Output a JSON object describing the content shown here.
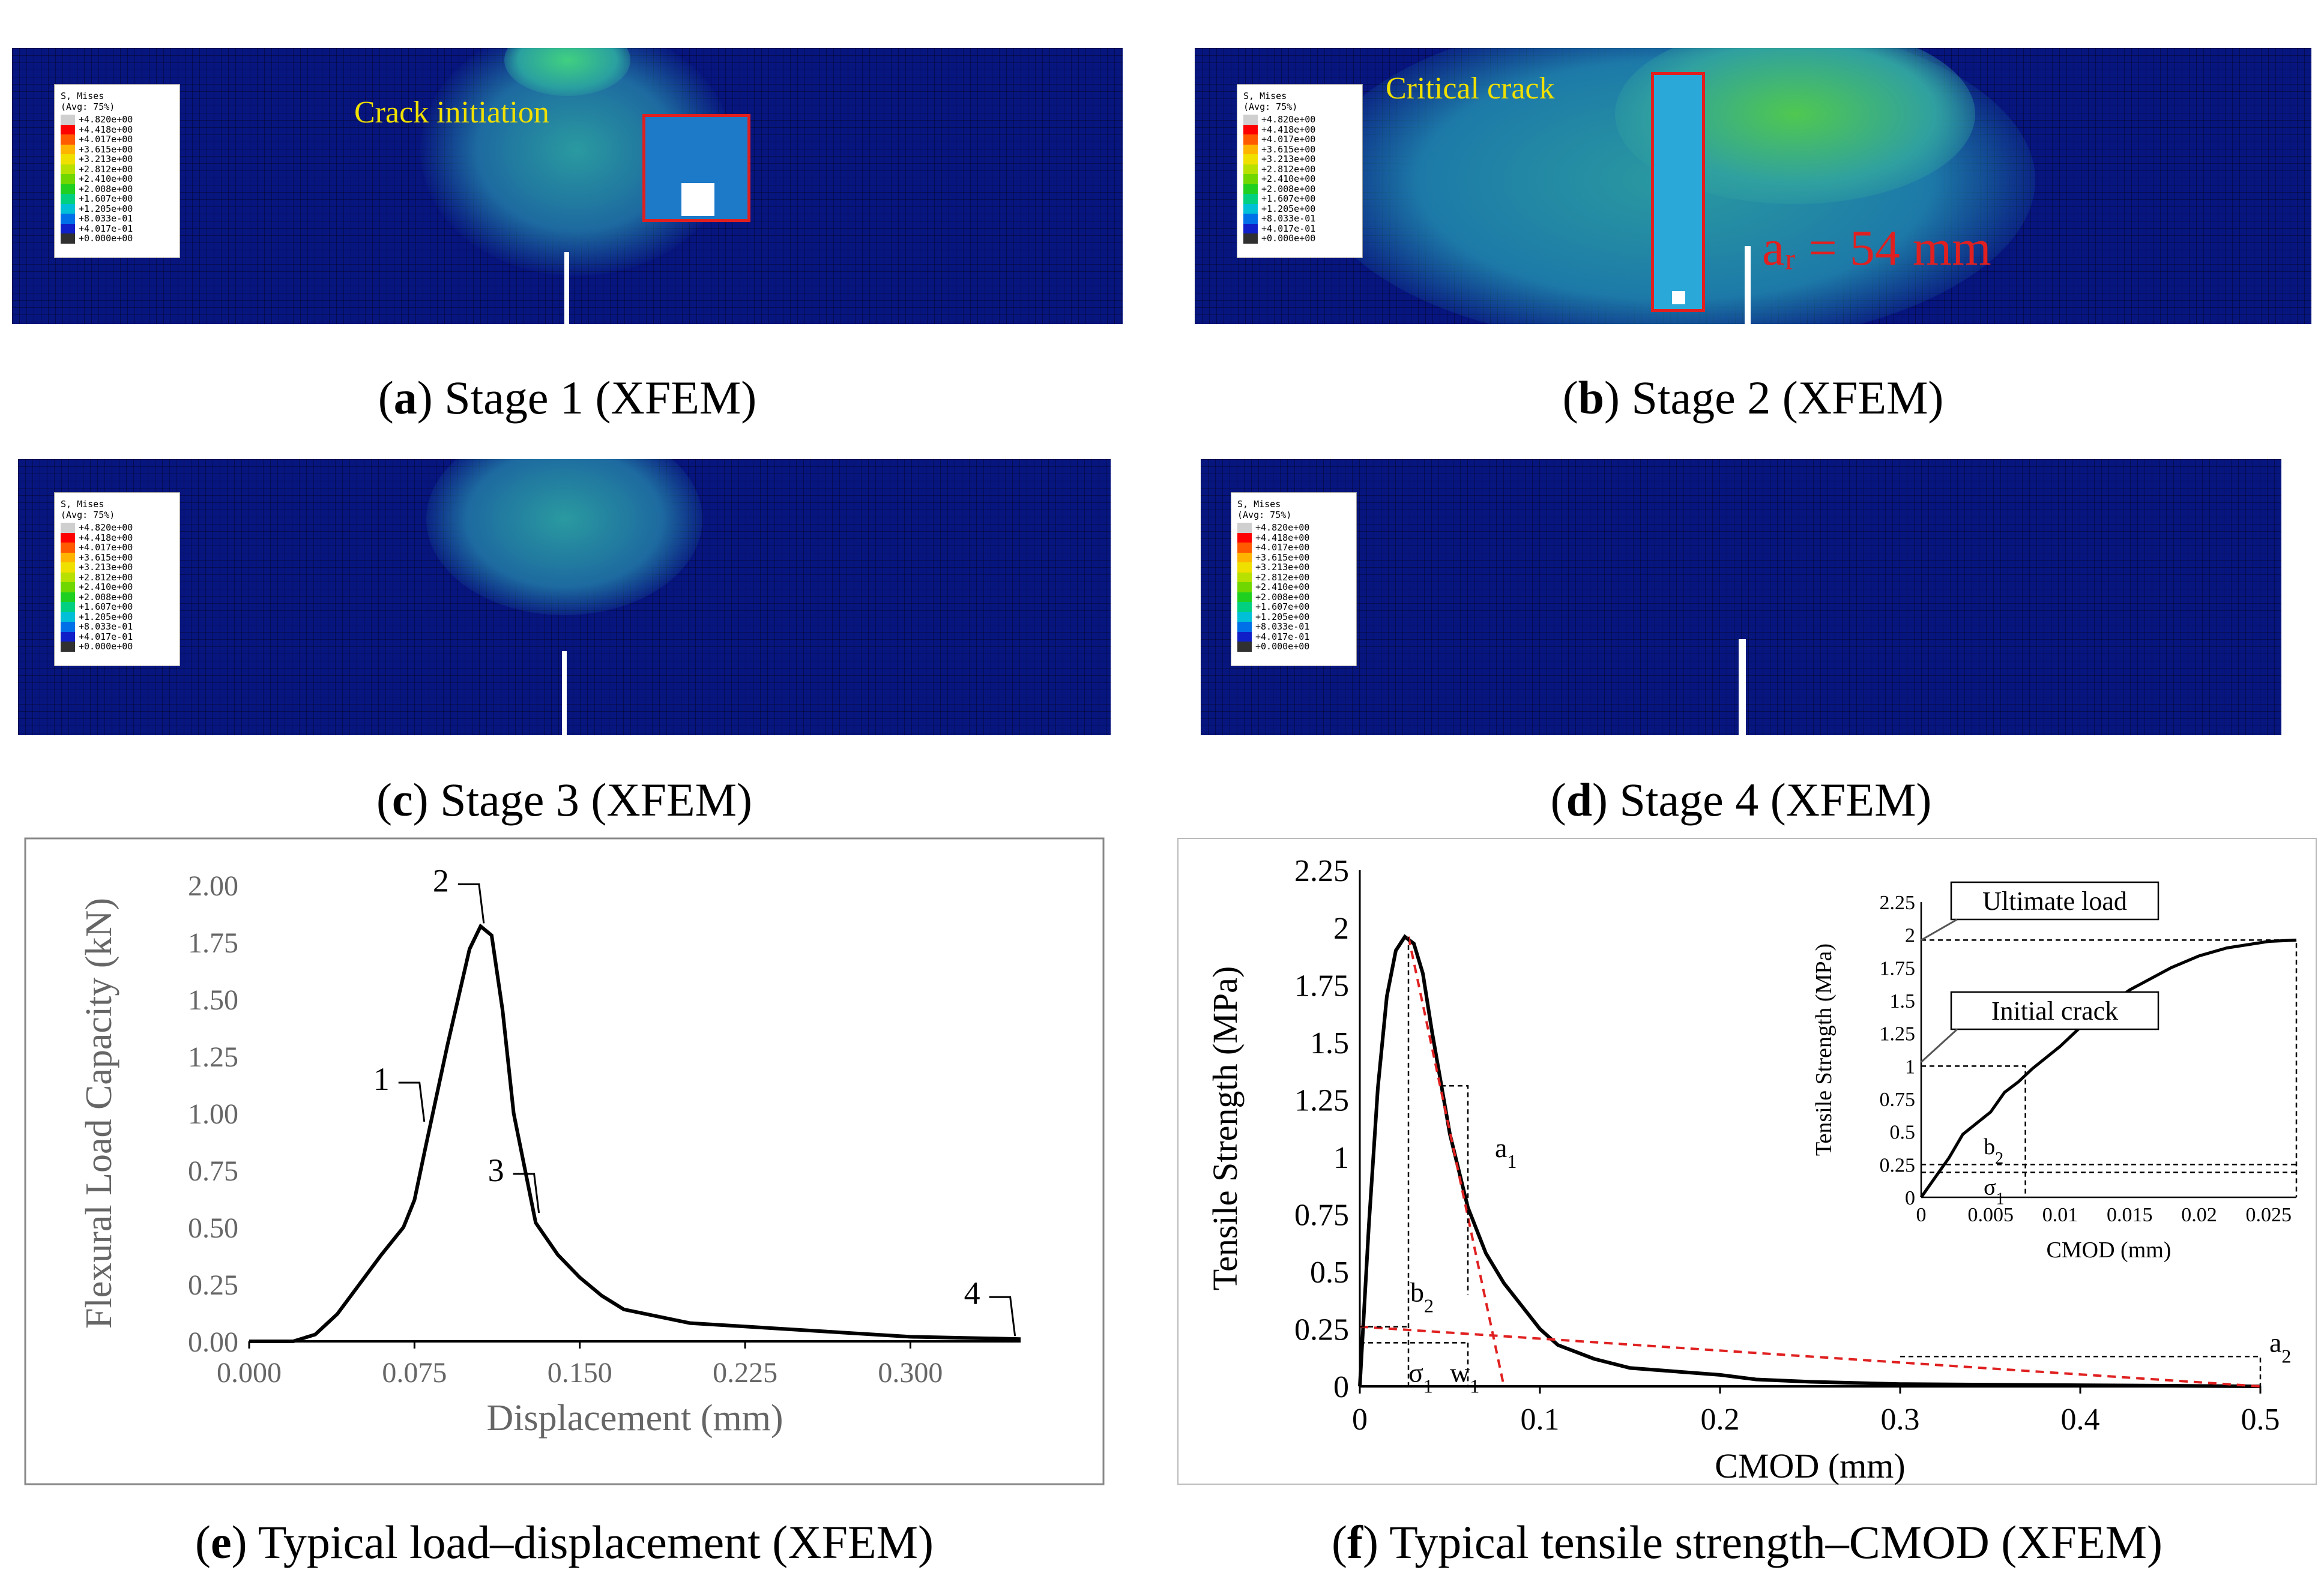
{
  "legend": {
    "title_line1": "S, Mises",
    "title_line2": "(Avg: 75%)",
    "values": [
      "+4.820e+00",
      "+4.418e+00",
      "+4.017e+00",
      "+3.615e+00",
      "+3.213e+00",
      "+2.812e+00",
      "+2.410e+00",
      "+2.008e+00",
      "+1.607e+00",
      "+1.205e+00",
      "+8.033e-01",
      "+4.017e-01",
      "+0.000e+00"
    ],
    "colors": [
      "#cfcfcf",
      "#ff0000",
      "#ff5a00",
      "#ffb400",
      "#f0e000",
      "#b8e000",
      "#70d800",
      "#20d020",
      "#00d080",
      "#00c0d8",
      "#0070e8",
      "#1020c8",
      "#303030"
    ]
  },
  "panels": {
    "a": {
      "letter": "a",
      "caption": " Stage 1 (XFEM)",
      "annotation": "Crack initiation"
    },
    "b": {
      "letter": "b",
      "caption": " Stage 2 (XFEM)",
      "annotation": "Critical crack",
      "length_label": "aᵣ = 54 mm"
    },
    "c": {
      "letter": "c",
      "caption": " Stage 3 (XFEM)"
    },
    "d": {
      "letter": "d",
      "caption": " Stage 4 (XFEM)"
    },
    "e": {
      "letter": "e",
      "caption": " Typical load–displacement (XFEM)"
    },
    "f": {
      "letter": "f",
      "caption": " Typical tensile strength–CMOD (XFEM)"
    }
  },
  "chart_data": [
    {
      "type": "line",
      "id": "e",
      "xlabel": "Displacement (mm)",
      "ylabel": "Flexural Load Capacity (kN)",
      "xlim": [
        0,
        0.35
      ],
      "ylim": [
        0,
        2.0
      ],
      "x_ticks": [
        "0.000",
        "0.075",
        "0.150",
        "0.225",
        "0.300"
      ],
      "x_tick_values": [
        0,
        0.075,
        0.15,
        0.225,
        0.3
      ],
      "y_ticks": [
        "0.00",
        "0.25",
        "0.50",
        "0.75",
        "1.00",
        "1.25",
        "1.50",
        "1.75",
        "2.00"
      ],
      "y_tick_values": [
        0,
        0.25,
        0.5,
        0.75,
        1.0,
        1.25,
        1.5,
        1.75,
        2.0
      ],
      "series": [
        {
          "x": [
            0.0,
            0.02,
            0.03,
            0.04,
            0.05,
            0.06,
            0.07,
            0.075,
            0.08,
            0.09,
            0.1,
            0.105,
            0.11,
            0.115,
            0.12,
            0.13,
            0.14,
            0.15,
            0.16,
            0.17,
            0.2,
            0.25,
            0.3,
            0.35
          ],
          "y": [
            0.0,
            0.0,
            0.03,
            0.12,
            0.25,
            0.38,
            0.5,
            0.62,
            0.85,
            1.3,
            1.72,
            1.82,
            1.78,
            1.45,
            1.0,
            0.52,
            0.38,
            0.28,
            0.2,
            0.14,
            0.08,
            0.05,
            0.02,
            0.01
          ]
        }
      ],
      "annotations": [
        {
          "label": "1",
          "x": 0.08,
          "y": 0.95
        },
        {
          "label": "2",
          "x": 0.107,
          "y": 1.82
        },
        {
          "label": "3",
          "x": 0.132,
          "y": 0.55
        },
        {
          "label": "4",
          "x": 0.348,
          "y": 0.01
        }
      ]
    },
    {
      "type": "line",
      "id": "f",
      "xlabel": "CMOD (mm)",
      "ylabel": "Tensile Strength (MPa)",
      "xlim": [
        0,
        0.5
      ],
      "ylim": [
        0,
        2.25
      ],
      "x_ticks": [
        "0",
        "0.1",
        "0.2",
        "0.3",
        "0.4",
        "0.5"
      ],
      "x_tick_values": [
        0,
        0.1,
        0.2,
        0.3,
        0.4,
        0.5
      ],
      "y_ticks": [
        "0",
        "0.25",
        "0.5",
        "0.75",
        "1",
        "1.25",
        "1.5",
        "1.75",
        "2",
        "2.25"
      ],
      "y_tick_values": [
        0,
        0.25,
        0.5,
        0.75,
        1,
        1.25,
        1.5,
        1.75,
        2,
        2.25
      ],
      "series": [
        {
          "x": [
            0.0,
            0.005,
            0.01,
            0.015,
            0.02,
            0.025,
            0.03,
            0.035,
            0.04,
            0.05,
            0.06,
            0.07,
            0.08,
            0.09,
            0.1,
            0.11,
            0.13,
            0.15,
            0.2,
            0.22,
            0.25,
            0.3,
            0.4,
            0.5
          ],
          "y": [
            0.0,
            0.7,
            1.3,
            1.7,
            1.9,
            1.96,
            1.93,
            1.8,
            1.55,
            1.1,
            0.78,
            0.58,
            0.45,
            0.35,
            0.25,
            0.18,
            0.12,
            0.08,
            0.05,
            0.03,
            0.02,
            0.01,
            0.005,
            0.0
          ]
        },
        {
          "x": [
            0.027,
            0.08
          ],
          "y": [
            1.96,
            0.0
          ],
          "style": "red-dashed"
        },
        {
          "x": [
            0.0,
            0.5
          ],
          "y": [
            0.26,
            0.0
          ],
          "style": "red-dashed"
        }
      ],
      "labels": [
        "a1",
        "b2",
        "σ1",
        "w1",
        "a2"
      ],
      "inset": {
        "xlabel": "CMOD (mm)",
        "ylabel": "Tensile Strength (MPa)",
        "xlim": [
          0,
          0.027
        ],
        "ylim": [
          0,
          2.25
        ],
        "x_ticks": [
          "0",
          "0.005",
          "0.01",
          "0.015",
          "0.02",
          "0.025"
        ],
        "x_tick_values": [
          0,
          0.005,
          0.01,
          0.015,
          0.02,
          0.025
        ],
        "y_ticks": [
          "0",
          "0.25",
          "0.5",
          "0.75",
          "1",
          "1.25",
          "1.5",
          "1.75",
          "2",
          "2.25"
        ],
        "y_tick_values": [
          0,
          0.25,
          0.5,
          0.75,
          1,
          1.25,
          1.5,
          1.75,
          2,
          2.25
        ],
        "x": [
          0.0,
          0.001,
          0.002,
          0.003,
          0.005,
          0.006,
          0.007,
          0.008,
          0.01,
          0.012,
          0.015,
          0.018,
          0.02,
          0.022,
          0.025,
          0.027
        ],
        "y": [
          0.0,
          0.15,
          0.3,
          0.48,
          0.65,
          0.8,
          0.88,
          0.98,
          1.15,
          1.35,
          1.58,
          1.75,
          1.84,
          1.9,
          1.95,
          1.96
        ],
        "callouts": [
          "Ultimate load",
          "Initial crack"
        ],
        "labels": [
          "b2",
          "σ1"
        ]
      }
    }
  ]
}
